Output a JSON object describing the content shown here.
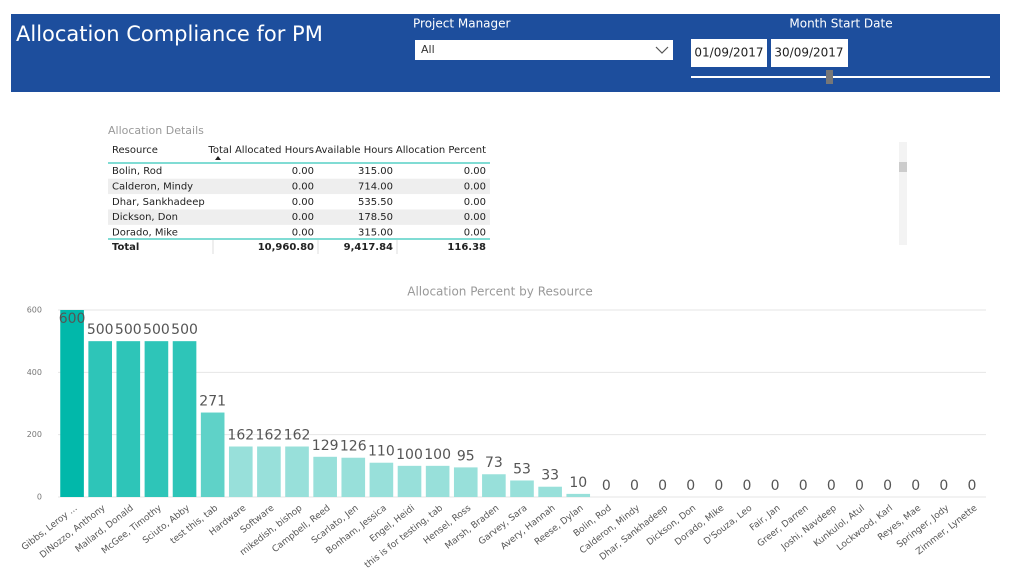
{
  "header": {
    "title": "Allocation Compliance for PM"
  },
  "filters": {
    "project_manager": {
      "label": "Project Manager",
      "value": "All"
    },
    "month_start_date": {
      "label": "Month Start Date",
      "start": "01/09/2017",
      "end": "30/09/2017"
    }
  },
  "table": {
    "title": "Allocation Details",
    "columns": [
      "Resource",
      "Total Allocated Hours",
      "Available Hours",
      "Allocation Percent"
    ],
    "rows": [
      [
        "Bolin, Rod",
        "0.00",
        "315.00",
        "0.00"
      ],
      [
        "Calderon, Mindy",
        "0.00",
        "714.00",
        "0.00"
      ],
      [
        "Dhar, Sankhadeep",
        "0.00",
        "535.50",
        "0.00"
      ],
      [
        "Dickson, Don",
        "0.00",
        "178.50",
        "0.00"
      ],
      [
        "Dorado, Mike",
        "0.00",
        "315.00",
        "0.00"
      ]
    ],
    "total": [
      "Total",
      "10,960.80",
      "9,417.84",
      "116.38"
    ]
  },
  "chart_data": {
    "type": "bar",
    "title": "Allocation Percent by Resource",
    "categories": [
      "Gibbs, Leroy ...",
      "DiNozzo, Anthony",
      "Mallard, Donald",
      "McGee, Timothy",
      "Sciuto, Abby",
      "test this, tab",
      "Hardware",
      "Software",
      "mikedish, bishop",
      "Campbell, Reed",
      "Scarlato, Jen",
      "Bonham, Jessica",
      "Engel, Heidi",
      "this is for testing, tab",
      "Hensel, Ross",
      "Marsh, Braden",
      "Garvey, Sara",
      "Avery, Hannah",
      "Reese, Dylan",
      "Bolin, Rod",
      "Calderon, Mindy",
      "Dhar, Sankhadeep",
      "Dickson, Don",
      "Dorado, Mike",
      "D'Souza, Leo",
      "Fair, Jan",
      "Greer, Darren",
      "Joshi, Navdeep",
      "Kunkulol, Atul",
      "Lockwood, Karl",
      "Reyes, Mae",
      "Springer, Jody",
      "Zimmer, Lynette"
    ],
    "values": [
      600,
      500,
      500,
      500,
      500,
      271,
      162,
      162,
      162,
      129,
      126,
      110,
      100,
      100,
      95,
      73,
      53,
      33,
      10,
      0,
      0,
      0,
      0,
      0,
      0,
      0,
      0,
      0,
      0,
      0,
      0,
      0,
      0
    ],
    "colors": [
      "#01b8aa",
      "#2ec5b8",
      "#2ec5b8",
      "#2ec5b8",
      "#2ec5b8",
      "#5fd2c8",
      "#98e0da",
      "#98e0da",
      "#98e0da",
      "#98e0da",
      "#98e0da",
      "#98e0da",
      "#98e0da",
      "#98e0da",
      "#98e0da",
      "#98e0da",
      "#98e0da",
      "#98e0da",
      "#98e0da",
      "#98e0da",
      "#98e0da",
      "#98e0da",
      "#98e0da",
      "#98e0da",
      "#98e0da",
      "#98e0da",
      "#98e0da",
      "#98e0da",
      "#98e0da",
      "#98e0da",
      "#98e0da",
      "#98e0da",
      "#98e0da"
    ],
    "ylim": [
      0,
      600
    ],
    "yticks": [
      0,
      200,
      400,
      600
    ],
    "grid": true
  }
}
